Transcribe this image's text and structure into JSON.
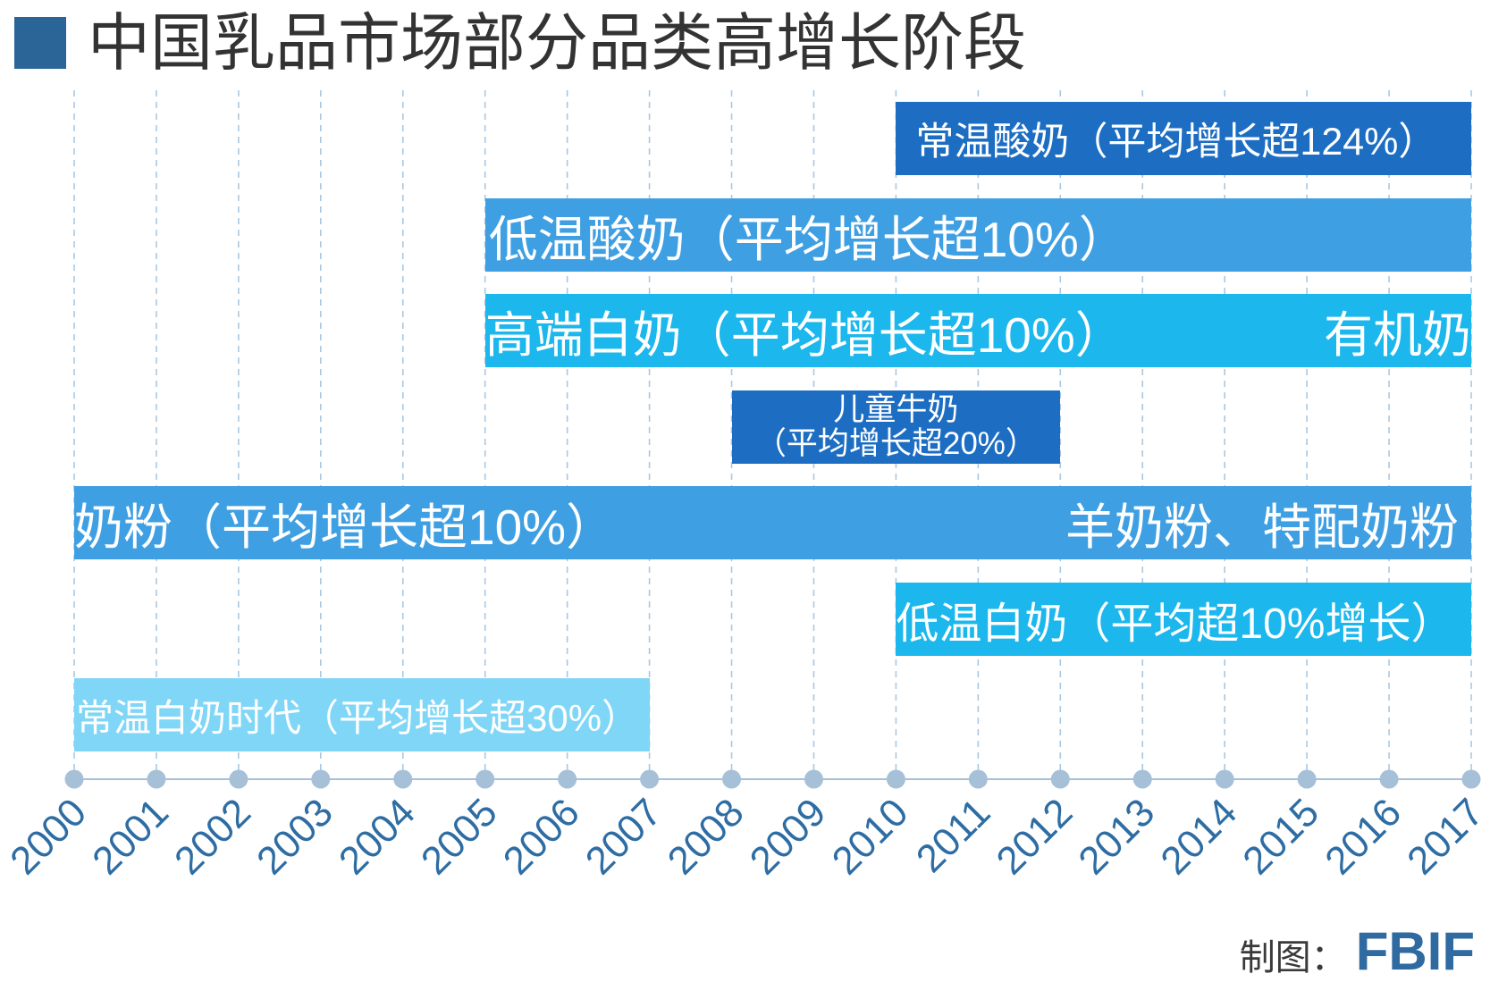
{
  "chart_data": {
    "type": "bar",
    "orientation": "horizontal",
    "title": "中国乳品市场部分品类高增长阶段",
    "xlim": [
      2000,
      2017
    ],
    "x_ticks": [
      "2000",
      "2001",
      "2002",
      "2003",
      "2004",
      "2005",
      "2006",
      "2007",
      "2008",
      "2009",
      "2010",
      "2011",
      "2012",
      "2013",
      "2014",
      "2015",
      "2016",
      "2017"
    ],
    "grid": true,
    "bars": [
      {
        "label": "常温酸奶（平均增长超124%）",
        "start": 2010,
        "end": 2017,
        "color": "#1d6ec3"
      },
      {
        "label": "低温酸奶（平均增长超10%）",
        "start": 2005,
        "end": 2017,
        "color": "#3f9fe3"
      },
      {
        "label": "高端白奶（平均增长超10%）",
        "label_right": "有机奶",
        "start": 2005,
        "end": 2017,
        "color": "#1bb7ed"
      },
      {
        "label": "儿童牛奶",
        "sublabel": "（平均增长超20%）",
        "start": 2008,
        "end": 2012,
        "color": "#1d6ec3"
      },
      {
        "label": "奶粉（平均增长超10%）",
        "label_right": "羊奶粉、特配奶粉",
        "start": 2000,
        "end": 2017,
        "color": "#3f9fe3"
      },
      {
        "label": "低温白奶（平均超10%增长）",
        "start": 2010,
        "end": 2017,
        "color": "#1bb7ed"
      },
      {
        "label": "常温白奶时代（平均增长超30%）",
        "start": 2000,
        "end": 2007,
        "color": "#80d6f7"
      }
    ]
  },
  "colors": {
    "title_marker": "#2b6597",
    "grid": "#a9c8e2",
    "axis": "#a6c0d8",
    "tick_label": "#2e6da3",
    "brand": "#2f6aa1"
  },
  "footer": {
    "label": "制图：",
    "brand": "FBIF"
  }
}
